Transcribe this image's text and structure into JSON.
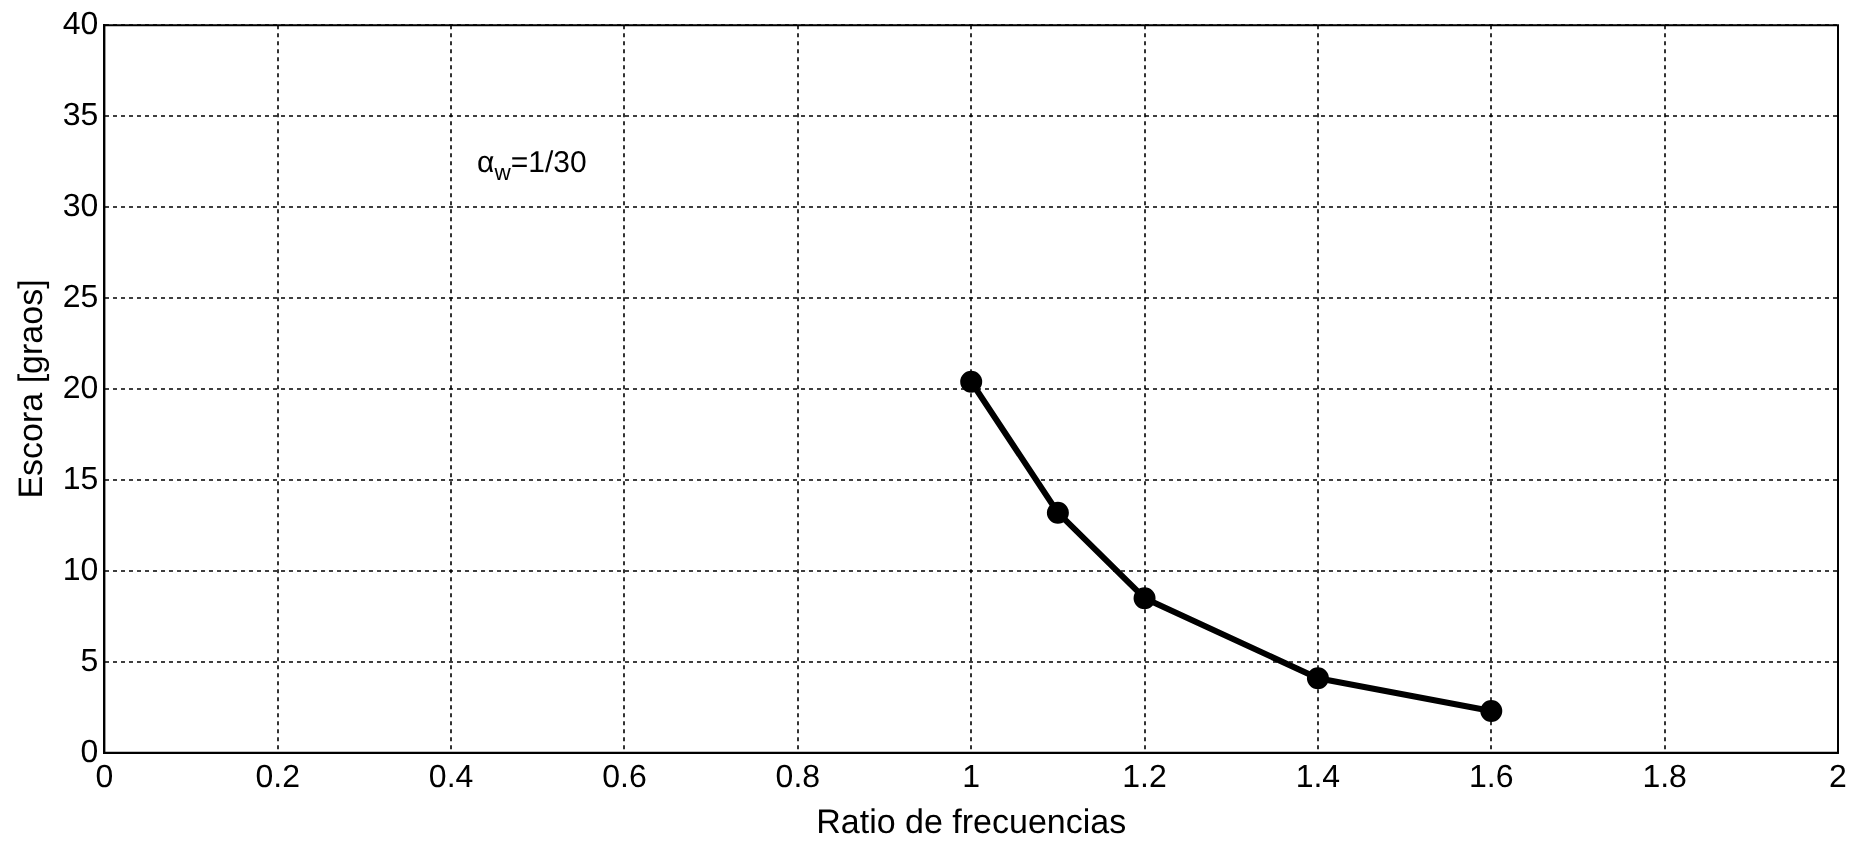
{
  "chart_data": {
    "type": "line",
    "xlabel": "Ratio de frecuencias",
    "ylabel": "Escora [graos]",
    "x": [
      1,
      1.1,
      1.2,
      1.4,
      1.6
    ],
    "series": [
      {
        "color": "#000000",
        "values": [
          20.4,
          13.2,
          8.5,
          4.1,
          2.3
        ]
      }
    ],
    "xlim": [
      0,
      2
    ],
    "xticks": [
      0,
      0.2,
      0.4,
      0.6,
      0.8,
      1,
      1.2,
      1.4,
      1.6,
      1.8,
      2
    ],
    "ylim": [
      0,
      40
    ],
    "yticks": [
      0,
      5,
      10,
      15,
      20,
      25,
      30,
      35,
      40
    ],
    "grid": true,
    "marker": "circle",
    "line_style": "solid",
    "legend": false,
    "annotations": [
      "α$_{w}$=1/30"
    ]
  }
}
